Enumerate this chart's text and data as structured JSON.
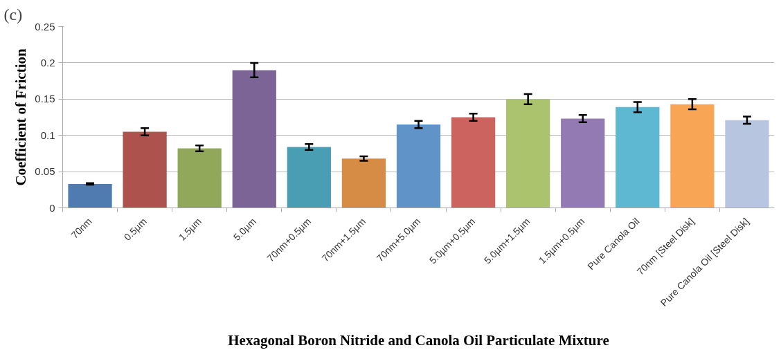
{
  "chart_data": {
    "type": "bar",
    "xlabel": "Hexagonal Boron Nitride and Canola Oil Particulate Mixture",
    "ylabel": "Coefficient of Friction",
    "annotations": [
      "(c)"
    ],
    "categories": [
      "70nm",
      "0.5µm",
      "1.5µm",
      "5.0µm",
      "70nm+0.5µm",
      "70nm+1.5µm",
      "70nm+5.0µm",
      "5.0µm+0.5µm",
      "5.0µm+1.5µm",
      "1.5µm+0.5µm",
      "Pure Canola Oil",
      "70nm [Steel Disk]",
      "Pure Canola Oil [Steel Disk]"
    ],
    "values": [
      0.033,
      0.105,
      0.082,
      0.19,
      0.084,
      0.068,
      0.115,
      0.125,
      0.15,
      0.123,
      0.139,
      0.143,
      0.121
    ],
    "errors": [
      0.001,
      0.005,
      0.004,
      0.01,
      0.004,
      0.003,
      0.005,
      0.005,
      0.007,
      0.005,
      0.007,
      0.007,
      0.005
    ],
    "colors": [
      "#4f7bb0",
      "#ad524d",
      "#91a85a",
      "#7c6596",
      "#4a9eb3",
      "#d68c45",
      "#6094c9",
      "#cc635e",
      "#abc36c",
      "#937ab2",
      "#5fb8d2",
      "#f9a556",
      "#b7c5e0"
    ],
    "ylim": [
      0,
      0.25
    ],
    "yticks": [
      0,
      0.05,
      0.1,
      0.15,
      0.2,
      0.25
    ],
    "grid": "y"
  }
}
